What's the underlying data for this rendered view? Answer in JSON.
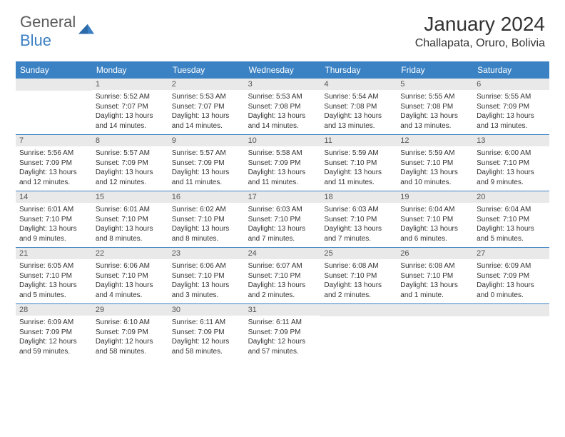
{
  "logo": {
    "general": "General",
    "blue": "Blue"
  },
  "title": "January 2024",
  "location": "Challapata, Oruro, Bolivia",
  "colors": {
    "header_bg": "#3b82c4",
    "header_text": "#ffffff",
    "daynum_bg": "#e9e9e9",
    "week_divider": "#3b82c4",
    "logo_gray": "#5a5a5a",
    "logo_blue": "#3b7fc4"
  },
  "day_labels": [
    "Sunday",
    "Monday",
    "Tuesday",
    "Wednesday",
    "Thursday",
    "Friday",
    "Saturday"
  ],
  "weeks": [
    [
      {
        "day": "",
        "sunrise": "",
        "sunset": "",
        "daylight": ""
      },
      {
        "day": "1",
        "sunrise": "Sunrise: 5:52 AM",
        "sunset": "Sunset: 7:07 PM",
        "daylight": "Daylight: 13 hours and 14 minutes."
      },
      {
        "day": "2",
        "sunrise": "Sunrise: 5:53 AM",
        "sunset": "Sunset: 7:07 PM",
        "daylight": "Daylight: 13 hours and 14 minutes."
      },
      {
        "day": "3",
        "sunrise": "Sunrise: 5:53 AM",
        "sunset": "Sunset: 7:08 PM",
        "daylight": "Daylight: 13 hours and 14 minutes."
      },
      {
        "day": "4",
        "sunrise": "Sunrise: 5:54 AM",
        "sunset": "Sunset: 7:08 PM",
        "daylight": "Daylight: 13 hours and 13 minutes."
      },
      {
        "day": "5",
        "sunrise": "Sunrise: 5:55 AM",
        "sunset": "Sunset: 7:08 PM",
        "daylight": "Daylight: 13 hours and 13 minutes."
      },
      {
        "day": "6",
        "sunrise": "Sunrise: 5:55 AM",
        "sunset": "Sunset: 7:09 PM",
        "daylight": "Daylight: 13 hours and 13 minutes."
      }
    ],
    [
      {
        "day": "7",
        "sunrise": "Sunrise: 5:56 AM",
        "sunset": "Sunset: 7:09 PM",
        "daylight": "Daylight: 13 hours and 12 minutes."
      },
      {
        "day": "8",
        "sunrise": "Sunrise: 5:57 AM",
        "sunset": "Sunset: 7:09 PM",
        "daylight": "Daylight: 13 hours and 12 minutes."
      },
      {
        "day": "9",
        "sunrise": "Sunrise: 5:57 AM",
        "sunset": "Sunset: 7:09 PM",
        "daylight": "Daylight: 13 hours and 11 minutes."
      },
      {
        "day": "10",
        "sunrise": "Sunrise: 5:58 AM",
        "sunset": "Sunset: 7:09 PM",
        "daylight": "Daylight: 13 hours and 11 minutes."
      },
      {
        "day": "11",
        "sunrise": "Sunrise: 5:59 AM",
        "sunset": "Sunset: 7:10 PM",
        "daylight": "Daylight: 13 hours and 11 minutes."
      },
      {
        "day": "12",
        "sunrise": "Sunrise: 5:59 AM",
        "sunset": "Sunset: 7:10 PM",
        "daylight": "Daylight: 13 hours and 10 minutes."
      },
      {
        "day": "13",
        "sunrise": "Sunrise: 6:00 AM",
        "sunset": "Sunset: 7:10 PM",
        "daylight": "Daylight: 13 hours and 9 minutes."
      }
    ],
    [
      {
        "day": "14",
        "sunrise": "Sunrise: 6:01 AM",
        "sunset": "Sunset: 7:10 PM",
        "daylight": "Daylight: 13 hours and 9 minutes."
      },
      {
        "day": "15",
        "sunrise": "Sunrise: 6:01 AM",
        "sunset": "Sunset: 7:10 PM",
        "daylight": "Daylight: 13 hours and 8 minutes."
      },
      {
        "day": "16",
        "sunrise": "Sunrise: 6:02 AM",
        "sunset": "Sunset: 7:10 PM",
        "daylight": "Daylight: 13 hours and 8 minutes."
      },
      {
        "day": "17",
        "sunrise": "Sunrise: 6:03 AM",
        "sunset": "Sunset: 7:10 PM",
        "daylight": "Daylight: 13 hours and 7 minutes."
      },
      {
        "day": "18",
        "sunrise": "Sunrise: 6:03 AM",
        "sunset": "Sunset: 7:10 PM",
        "daylight": "Daylight: 13 hours and 7 minutes."
      },
      {
        "day": "19",
        "sunrise": "Sunrise: 6:04 AM",
        "sunset": "Sunset: 7:10 PM",
        "daylight": "Daylight: 13 hours and 6 minutes."
      },
      {
        "day": "20",
        "sunrise": "Sunrise: 6:04 AM",
        "sunset": "Sunset: 7:10 PM",
        "daylight": "Daylight: 13 hours and 5 minutes."
      }
    ],
    [
      {
        "day": "21",
        "sunrise": "Sunrise: 6:05 AM",
        "sunset": "Sunset: 7:10 PM",
        "daylight": "Daylight: 13 hours and 5 minutes."
      },
      {
        "day": "22",
        "sunrise": "Sunrise: 6:06 AM",
        "sunset": "Sunset: 7:10 PM",
        "daylight": "Daylight: 13 hours and 4 minutes."
      },
      {
        "day": "23",
        "sunrise": "Sunrise: 6:06 AM",
        "sunset": "Sunset: 7:10 PM",
        "daylight": "Daylight: 13 hours and 3 minutes."
      },
      {
        "day": "24",
        "sunrise": "Sunrise: 6:07 AM",
        "sunset": "Sunset: 7:10 PM",
        "daylight": "Daylight: 13 hours and 2 minutes."
      },
      {
        "day": "25",
        "sunrise": "Sunrise: 6:08 AM",
        "sunset": "Sunset: 7:10 PM",
        "daylight": "Daylight: 13 hours and 2 minutes."
      },
      {
        "day": "26",
        "sunrise": "Sunrise: 6:08 AM",
        "sunset": "Sunset: 7:10 PM",
        "daylight": "Daylight: 13 hours and 1 minute."
      },
      {
        "day": "27",
        "sunrise": "Sunrise: 6:09 AM",
        "sunset": "Sunset: 7:09 PM",
        "daylight": "Daylight: 13 hours and 0 minutes."
      }
    ],
    [
      {
        "day": "28",
        "sunrise": "Sunrise: 6:09 AM",
        "sunset": "Sunset: 7:09 PM",
        "daylight": "Daylight: 12 hours and 59 minutes."
      },
      {
        "day": "29",
        "sunrise": "Sunrise: 6:10 AM",
        "sunset": "Sunset: 7:09 PM",
        "daylight": "Daylight: 12 hours and 58 minutes."
      },
      {
        "day": "30",
        "sunrise": "Sunrise: 6:11 AM",
        "sunset": "Sunset: 7:09 PM",
        "daylight": "Daylight: 12 hours and 58 minutes."
      },
      {
        "day": "31",
        "sunrise": "Sunrise: 6:11 AM",
        "sunset": "Sunset: 7:09 PM",
        "daylight": "Daylight: 12 hours and 57 minutes."
      },
      {
        "day": "",
        "sunrise": "",
        "sunset": "",
        "daylight": ""
      },
      {
        "day": "",
        "sunrise": "",
        "sunset": "",
        "daylight": ""
      },
      {
        "day": "",
        "sunrise": "",
        "sunset": "",
        "daylight": ""
      }
    ]
  ]
}
